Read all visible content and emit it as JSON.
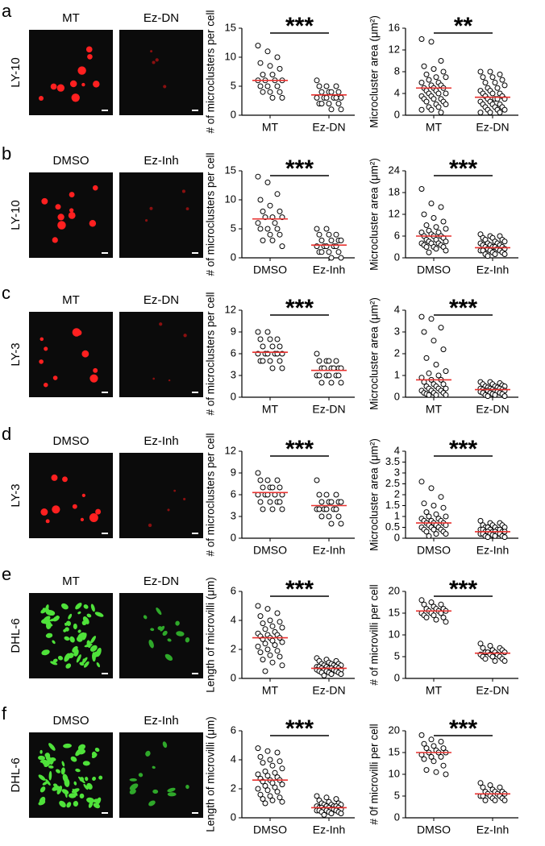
{
  "panels": [
    {
      "letter": "a",
      "cell_line": "LY-10",
      "image_labels": [
        "MT",
        "Ez-DN"
      ]
    },
    {
      "letter": "b",
      "cell_line": "LY-10",
      "image_labels": [
        "DMSO",
        "Ez-Inh"
      ]
    },
    {
      "letter": "c",
      "cell_line": "LY-3",
      "image_labels": [
        "MT",
        "Ez-DN"
      ]
    },
    {
      "letter": "d",
      "cell_line": "LY-3",
      "image_labels": [
        "DMSO",
        "Ez-Inh"
      ]
    },
    {
      "letter": "e",
      "cell_line": "DHL-6",
      "image_labels": [
        "MT",
        "Ez-DN"
      ]
    },
    {
      "letter": "f",
      "cell_line": "DHL-6",
      "image_labels": [
        "DMSO",
        "Ez-Inh"
      ]
    }
  ],
  "chart_data": [
    {
      "type": "strip",
      "y_label": "# of microclusters per cell",
      "categories": [
        "MT",
        "Ez-DN"
      ],
      "significance": "***",
      "ylim": [
        0,
        15
      ],
      "yticks": [
        0,
        5,
        10,
        15
      ],
      "median_color": "#e8312f",
      "values": [
        [
          12,
          11,
          10,
          9,
          8.5,
          8,
          7,
          7,
          6,
          6,
          6,
          6,
          5,
          5,
          5,
          4,
          4,
          4,
          3,
          3
        ],
        [
          6,
          5,
          5,
          5,
          4,
          4,
          4,
          4,
          3,
          3,
          3,
          3,
          3,
          3,
          2,
          2,
          2,
          2,
          1,
          1
        ]
      ],
      "medians": [
        6,
        3.5
      ]
    },
    {
      "type": "strip",
      "y_label": "Microcluster area (μm²)",
      "categories": [
        "MT",
        "Ez-DN"
      ],
      "significance": "**",
      "ylim": [
        0,
        16
      ],
      "yticks": [
        0,
        4,
        8,
        12,
        16
      ],
      "median_color": "#e8312f",
      "values": [
        [
          14,
          13.5,
          10,
          9,
          8.5,
          8,
          7.5,
          7,
          7,
          6.5,
          6,
          6,
          5.5,
          5.5,
          5,
          5,
          5,
          4.5,
          4.5,
          4,
          4,
          4,
          3.5,
          3.5,
          3,
          3,
          3,
          2.5,
          2.5,
          2,
          2,
          1.5,
          1.5,
          1,
          1,
          0.5
        ],
        [
          8,
          8,
          7.5,
          7,
          7,
          6.5,
          6,
          6,
          5.5,
          5,
          5,
          4.5,
          4.5,
          4,
          4,
          4,
          3.5,
          3.5,
          3,
          3,
          3,
          3,
          2.5,
          2.5,
          2,
          2,
          2,
          1.5,
          1.5,
          1.5,
          1,
          1,
          1,
          0.5,
          0.5,
          0.5
        ]
      ],
      "medians": [
        5,
        3.3
      ]
    },
    {
      "type": "strip",
      "y_label": "# of microclusters per cell",
      "categories": [
        "DMSO",
        "Ez-Inh"
      ],
      "significance": "***",
      "ylim": [
        0,
        15
      ],
      "yticks": [
        0,
        5,
        10,
        15
      ],
      "median_color": "#e8312f",
      "values": [
        [
          14,
          13,
          11,
          10,
          9,
          8,
          8,
          7,
          7,
          7,
          6,
          6,
          5,
          5,
          5,
          4,
          4,
          3,
          3,
          2
        ],
        [
          5,
          5,
          4,
          4,
          4,
          3,
          3,
          3,
          3,
          2,
          2,
          2,
          2,
          2,
          1,
          1,
          1,
          1,
          0,
          0
        ]
      ],
      "medians": [
        6.7,
        2.2
      ]
    },
    {
      "type": "strip",
      "y_label": "Microcluster area (μm²)",
      "categories": [
        "DMSO",
        "Ez-Inh"
      ],
      "significance": "***",
      "ylim": [
        0,
        24
      ],
      "yticks": [
        0,
        6,
        12,
        18,
        24
      ],
      "median_color": "#e8312f",
      "values": [
        [
          19,
          15,
          14,
          12,
          11,
          10,
          9,
          8.5,
          8,
          7.5,
          7,
          7,
          6.5,
          6,
          6,
          6,
          5.5,
          5,
          5,
          4.5,
          4.5,
          4,
          4,
          4,
          3.5,
          3.5,
          3,
          3,
          3,
          2.5,
          2,
          1.5
        ],
        [
          6.5,
          6,
          6,
          5.5,
          5.5,
          5,
          5,
          4.5,
          4.5,
          4,
          4,
          4,
          3.5,
          3.5,
          3.5,
          3,
          3,
          3,
          3,
          2.5,
          2.5,
          2.5,
          2,
          2,
          2,
          2,
          1.5,
          1.5,
          1,
          1,
          1,
          0.5
        ]
      ],
      "medians": [
        6,
        2.8
      ]
    },
    {
      "type": "strip",
      "y_label": "# of microclusters per cell",
      "categories": [
        "MT",
        "Ez-DN"
      ],
      "significance": "***",
      "ylim": [
        0,
        12
      ],
      "yticks": [
        0,
        3,
        6,
        9,
        12
      ],
      "median_color": "#e8312f",
      "values": [
        [
          9,
          9,
          8,
          8,
          8,
          7,
          7,
          7,
          6,
          6,
          6,
          6,
          6,
          6,
          5,
          5,
          5,
          5,
          4,
          4
        ],
        [
          6,
          5,
          5,
          5,
          5,
          4,
          4,
          4,
          4,
          4,
          4,
          3,
          3,
          3,
          3,
          3,
          3,
          2,
          2,
          2
        ]
      ],
      "medians": [
        6.2,
        3.7
      ]
    },
    {
      "type": "strip",
      "y_label": "Microcluster area (μm²)",
      "categories": [
        "MT",
        "Ez-DN"
      ],
      "significance": "***",
      "ylim": [
        0,
        4
      ],
      "yticks": [
        0,
        1,
        2,
        3,
        4
      ],
      "median_color": "#e8312f",
      "values": [
        [
          3.7,
          3.6,
          3.2,
          3,
          2.6,
          2.2,
          1.8,
          1.5,
          1.2,
          1.1,
          1,
          0.9,
          0.8,
          0.8,
          0.7,
          0.6,
          0.6,
          0.5,
          0.5,
          0.4,
          0.4,
          0.4,
          0.3,
          0.3,
          0.3,
          0.2,
          0.2,
          0.2,
          0.15,
          0.1,
          0.1,
          0.1
        ],
        [
          0.7,
          0.7,
          0.65,
          0.6,
          0.6,
          0.55,
          0.5,
          0.5,
          0.5,
          0.45,
          0.45,
          0.4,
          0.4,
          0.4,
          0.35,
          0.35,
          0.35,
          0.3,
          0.3,
          0.3,
          0.3,
          0.25,
          0.25,
          0.2,
          0.2,
          0.2,
          0.15,
          0.15,
          0.1,
          0.1,
          0.05,
          0.05
        ]
      ],
      "medians": [
        0.8,
        0.35
      ]
    },
    {
      "type": "strip",
      "y_label": "# of microclusters per cell",
      "categories": [
        "DMSO",
        "Ez-Inh"
      ],
      "significance": "***",
      "ylim": [
        0,
        12
      ],
      "yticks": [
        0,
        3,
        6,
        9,
        12
      ],
      "median_color": "#e8312f",
      "values": [
        [
          9,
          8,
          8,
          8,
          7,
          7,
          7,
          7,
          6,
          6,
          6,
          6,
          6,
          5,
          5,
          5,
          5,
          4,
          4,
          4
        ],
        [
          8,
          6,
          6,
          6,
          5,
          5,
          5,
          5,
          5,
          4,
          4,
          4,
          4,
          4,
          4,
          3,
          3,
          3,
          2,
          2
        ]
      ],
      "medians": [
        6.3,
        4.5
      ]
    },
    {
      "type": "strip",
      "y_label": "Microcluster area (μm²)",
      "categories": [
        "DMSO",
        "Ez-Inh"
      ],
      "significance": "***",
      "ylim": [
        0,
        4
      ],
      "yticks": [
        0,
        0.5,
        1,
        1.5,
        2,
        2.5,
        3,
        3.5,
        4
      ],
      "median_color": "#e8312f",
      "values": [
        [
          2.6,
          2.3,
          1.9,
          1.6,
          1.5,
          1.4,
          1.2,
          1.1,
          1,
          1,
          0.9,
          0.9,
          0.8,
          0.8,
          0.8,
          0.7,
          0.7,
          0.7,
          0.6,
          0.6,
          0.6,
          0.5,
          0.5,
          0.5,
          0.4,
          0.4,
          0.4,
          0.3,
          0.3,
          0.2,
          0.2,
          0.1
        ],
        [
          0.8,
          0.7,
          0.7,
          0.6,
          0.6,
          0.6,
          0.5,
          0.5,
          0.5,
          0.5,
          0.4,
          0.4,
          0.4,
          0.4,
          0.4,
          0.3,
          0.3,
          0.3,
          0.3,
          0.3,
          0.3,
          0.2,
          0.2,
          0.2,
          0.2,
          0.2,
          0.15,
          0.1,
          0.1,
          0.1,
          0.05,
          0.05
        ]
      ],
      "medians": [
        0.7,
        0.3
      ]
    },
    {
      "type": "strip",
      "y_label": "Length of microvilli (μm)",
      "categories": [
        "MT",
        "Ez-DN"
      ],
      "significance": "***",
      "ylim": [
        0,
        6
      ],
      "yticks": [
        0,
        2,
        4,
        6
      ],
      "median_color": "#e8312f",
      "values": [
        [
          5,
          4.8,
          4.5,
          4.3,
          4,
          3.9,
          3.8,
          3.6,
          3.5,
          3.4,
          3.2,
          3.1,
          3,
          3,
          2.9,
          2.8,
          2.8,
          2.7,
          2.6,
          2.5,
          2.4,
          2.3,
          2.2,
          2,
          1.9,
          1.8,
          1.6,
          1.5,
          1.3,
          1.1,
          0.9,
          0.5
        ],
        [
          1.4,
          1.3,
          1.2,
          1.2,
          1.1,
          1,
          1,
          1,
          0.9,
          0.9,
          0.9,
          0.8,
          0.8,
          0.8,
          0.8,
          0.7,
          0.7,
          0.7,
          0.7,
          0.6,
          0.6,
          0.6,
          0.6,
          0.5,
          0.5,
          0.5,
          0.4,
          0.4,
          0.4,
          0.3,
          0.3,
          0.2
        ]
      ],
      "medians": [
        2.8,
        0.7
      ]
    },
    {
      "type": "strip",
      "y_label": "# of microvilli per cell",
      "categories": [
        "MT",
        "Ez-DN"
      ],
      "significance": "***",
      "ylim": [
        0,
        20
      ],
      "yticks": [
        0,
        5,
        10,
        15,
        20
      ],
      "median_color": "#e8312f",
      "values": [
        [
          18,
          17.5,
          17,
          17,
          16.5,
          16,
          16,
          16,
          15.5,
          15.5,
          15.5,
          15,
          15,
          15,
          14.5,
          14.5,
          14,
          14,
          13.5,
          13
        ],
        [
          8,
          7.5,
          7,
          7,
          6.5,
          6.5,
          6,
          6,
          6,
          6,
          5.5,
          5.5,
          5.5,
          5,
          5,
          5,
          4.5,
          4.5,
          4,
          4
        ]
      ],
      "medians": [
        15.5,
        5.8
      ]
    },
    {
      "type": "strip",
      "y_label": "Length of microvilli (μm)",
      "categories": [
        "DMSO",
        "Ez-Inh"
      ],
      "significance": "***",
      "ylim": [
        0,
        6
      ],
      "yticks": [
        0,
        2,
        4,
        6
      ],
      "median_color": "#e8312f",
      "values": [
        [
          4.8,
          4.6,
          4.5,
          4.2,
          4,
          3.9,
          3.8,
          3.6,
          3.4,
          3.2,
          3.1,
          3,
          2.9,
          2.8,
          2.7,
          2.6,
          2.6,
          2.5,
          2.4,
          2.3,
          2.2,
          2.1,
          2,
          1.9,
          1.8,
          1.6,
          1.5,
          1.4,
          1.3,
          1.2,
          1.1,
          1
        ],
        [
          1.5,
          1.4,
          1.3,
          1.2,
          1.1,
          1,
          1,
          0.9,
          0.9,
          0.9,
          0.8,
          0.8,
          0.8,
          0.8,
          0.7,
          0.7,
          0.7,
          0.7,
          0.6,
          0.6,
          0.6,
          0.6,
          0.5,
          0.5,
          0.5,
          0.5,
          0.4,
          0.4,
          0.4,
          0.3,
          0.3,
          0.2
        ]
      ],
      "medians": [
        2.6,
        0.7
      ]
    },
    {
      "type": "strip",
      "y_label": "# 0f microvilli per cell",
      "categories": [
        "DMSO",
        "Ez-Inh"
      ],
      "significance": "***",
      "ylim": [
        0,
        20
      ],
      "yticks": [
        0,
        5,
        10,
        15,
        20
      ],
      "median_color": "#e8312f",
      "values": [
        [
          19,
          18,
          17.5,
          17,
          16.5,
          16,
          16,
          15.5,
          15,
          15,
          15,
          14.5,
          14,
          14,
          13.5,
          13,
          12,
          11,
          10.5,
          10
        ],
        [
          8,
          7.5,
          7,
          7,
          6.5,
          6,
          6,
          6,
          5.5,
          5.5,
          5.5,
          5,
          5,
          5,
          5,
          4.5,
          4.5,
          4,
          4,
          4
        ]
      ],
      "medians": [
        15,
        5.5
      ]
    }
  ]
}
